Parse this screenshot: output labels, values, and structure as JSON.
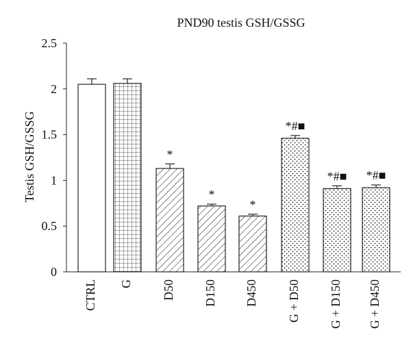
{
  "chart_data": {
    "type": "bar",
    "title": "PND90 testis GSH/GSSG",
    "xlabel": "",
    "ylabel": "Testis GSH/GSSG",
    "ylim": [
      0,
      2.5
    ],
    "yticks": [
      "0",
      "0.5",
      "1",
      "1.5",
      "2",
      "2.5"
    ],
    "categories": [
      "CTRL",
      "G",
      "D50",
      "D150",
      "D450",
      "G + D50",
      "G + D150",
      "G + D450"
    ],
    "values": [
      2.05,
      2.06,
      1.13,
      0.72,
      0.61,
      1.46,
      0.91,
      0.92
    ],
    "errors": [
      0.06,
      0.05,
      0.05,
      0.02,
      0.02,
      0.03,
      0.03,
      0.03
    ],
    "annotations": [
      "",
      "",
      "*",
      "*",
      "*",
      "*#■",
      "*#■",
      "*#■"
    ],
    "patterns": [
      "plain",
      "grid",
      "diagonal",
      "diagonal",
      "diagonal",
      "dots",
      "dots",
      "dots"
    ],
    "grid": false,
    "legend": "none"
  }
}
